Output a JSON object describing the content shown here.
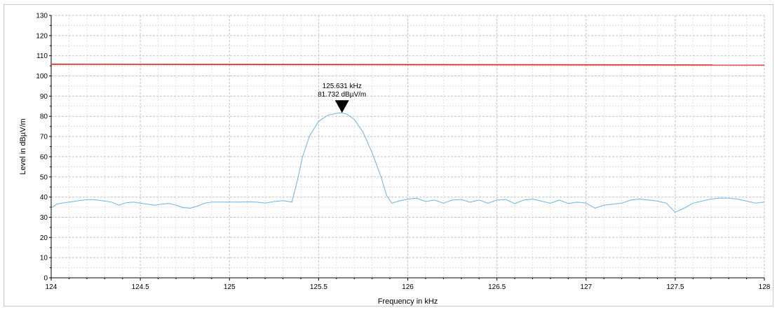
{
  "chart_data": {
    "type": "line",
    "xlabel": "Frequency in kHz",
    "ylabel": "Level in dBµV/m",
    "xlim": [
      124,
      128
    ],
    "ylim": [
      0,
      130
    ],
    "x_ticks": [
      "124",
      "124.5",
      "125",
      "125.5",
      "126",
      "126.5",
      "127",
      "127.5",
      "128"
    ],
    "y_ticks": [
      "0",
      "10",
      "20",
      "30",
      "40",
      "50",
      "60",
      "70",
      "80",
      "90",
      "100",
      "110",
      "120",
      "130"
    ],
    "grid": true,
    "limit_line": {
      "y_start": 105.8,
      "y_end": 105.4,
      "color": "#e02020"
    },
    "marker": {
      "x": 125.631,
      "y": 81.732,
      "freq_label": "125.631 kHz",
      "level_label": "81.732 dBµV/m"
    },
    "series": [
      {
        "color": "#6ab4e6",
        "x": [
          124.0,
          124.03,
          124.06,
          124.1,
          124.14,
          124.18,
          124.22,
          124.26,
          124.3,
          124.34,
          124.38,
          124.42,
          124.46,
          124.5,
          124.54,
          124.58,
          124.62,
          124.66,
          124.7,
          124.74,
          124.78,
          124.82,
          124.86,
          124.9,
          124.95,
          125.0,
          125.05,
          125.1,
          125.15,
          125.2,
          125.25,
          125.3,
          125.35,
          125.38,
          125.41,
          125.45,
          125.5,
          125.55,
          125.6,
          125.631,
          125.66,
          125.7,
          125.75,
          125.8,
          125.85,
          125.88,
          125.91,
          125.95,
          126.0,
          126.05,
          126.1,
          126.15,
          126.2,
          126.25,
          126.3,
          126.35,
          126.4,
          126.45,
          126.5,
          126.55,
          126.6,
          126.65,
          126.7,
          126.75,
          126.8,
          126.85,
          126.9,
          126.95,
          127.0,
          127.05,
          127.1,
          127.15,
          127.2,
          127.25,
          127.3,
          127.35,
          127.4,
          127.45,
          127.5,
          127.55,
          127.6,
          127.65,
          127.7,
          127.75,
          127.8,
          127.85,
          127.9,
          127.95,
          128.0
        ],
        "y": [
          34.5,
          36.5,
          37.0,
          37.5,
          38.0,
          38.5,
          38.8,
          38.5,
          38.0,
          37.5,
          36.0,
          37.2,
          37.5,
          37.0,
          36.5,
          36.0,
          36.5,
          36.8,
          36.0,
          34.8,
          34.5,
          35.5,
          37.0,
          37.5,
          37.5,
          37.5,
          37.5,
          37.6,
          37.5,
          37.0,
          37.8,
          38.2,
          37.5,
          48.0,
          60.0,
          70.5,
          77.5,
          80.5,
          81.5,
          81.7,
          81.0,
          78.5,
          72.0,
          62.0,
          50.0,
          41.0,
          37.0,
          38.0,
          39.0,
          39.5,
          37.8,
          38.5,
          37.0,
          38.5,
          38.8,
          37.5,
          38.5,
          37.0,
          38.5,
          38.8,
          36.8,
          38.5,
          39.0,
          38.0,
          37.0,
          38.5,
          36.8,
          37.5,
          37.0,
          34.5,
          36.0,
          36.5,
          37.0,
          38.5,
          39.0,
          38.5,
          38.0,
          37.0,
          32.5,
          34.5,
          37.0,
          38.0,
          39.0,
          39.5,
          39.5,
          39.0,
          38.0,
          37.0,
          37.5
        ]
      }
    ]
  }
}
